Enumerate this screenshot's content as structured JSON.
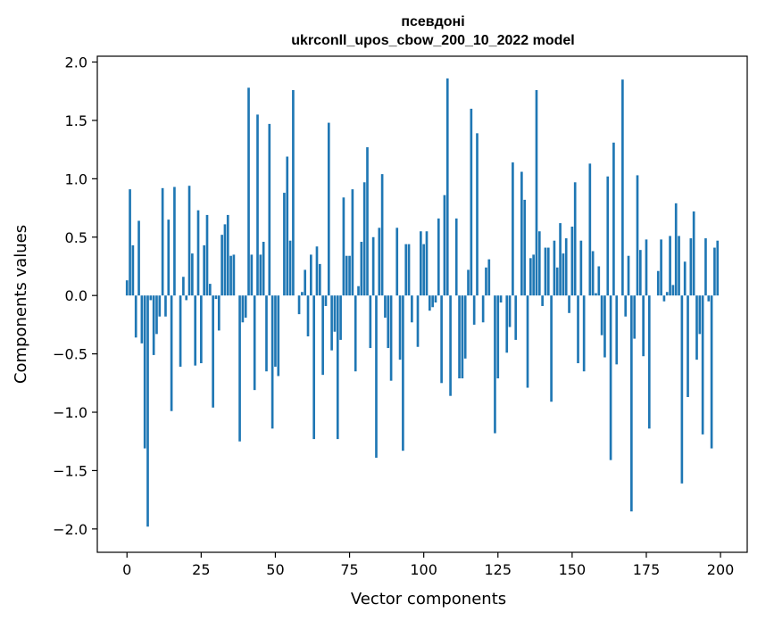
{
  "chart_data": {
    "type": "bar",
    "title_lines": [
      "псевдоні",
      "ukrconll_upos_cbow_200_10_2022 model"
    ],
    "xlabel": "Vector components",
    "ylabel": "Components values",
    "xlim": [
      -10,
      209
    ],
    "ylim": [
      -2.2,
      2.05
    ],
    "xticks": [
      0,
      25,
      50,
      75,
      100,
      125,
      150,
      175,
      200
    ],
    "yticks": [
      -2.0,
      -1.5,
      -1.0,
      -0.5,
      0.0,
      0.5,
      1.0,
      1.5,
      2.0
    ],
    "ytick_labels": [
      "−2.0",
      "−1.5",
      "−1.0",
      "−0.5",
      "0.0",
      "0.5",
      "1.0",
      "1.5",
      "2.0"
    ],
    "bar_color": "#1f77b4",
    "grid": false,
    "values": [
      0.13,
      0.91,
      0.43,
      -0.36,
      0.64,
      -0.41,
      -1.31,
      -1.98,
      -0.04,
      -0.51,
      -0.33,
      -0.18,
      0.92,
      -0.18,
      0.65,
      -0.99,
      0.93,
      0.0,
      -0.61,
      0.16,
      -0.04,
      0.94,
      0.36,
      -0.6,
      0.73,
      -0.58,
      0.43,
      0.69,
      0.1,
      -0.96,
      -0.03,
      -0.3,
      0.52,
      0.61,
      0.69,
      0.34,
      0.35,
      0.0,
      -1.25,
      -0.23,
      -0.19,
      1.78,
      0.35,
      -0.81,
      1.55,
      0.35,
      0.46,
      -0.65,
      1.47,
      -1.14,
      -0.61,
      -0.69,
      0.0,
      0.88,
      1.19,
      0.47,
      1.76,
      0.0,
      -0.16,
      0.03,
      0.22,
      -0.35,
      0.35,
      -1.23,
      0.42,
      0.27,
      -0.68,
      -0.09,
      1.48,
      -0.47,
      -0.31,
      -1.23,
      -0.38,
      0.84,
      0.34,
      0.34,
      0.91,
      -0.65,
      0.08,
      0.46,
      0.97,
      1.27,
      -0.45,
      0.5,
      -1.39,
      0.58,
      1.04,
      -0.19,
      -0.45,
      -0.73,
      0.0,
      0.58,
      -0.55,
      -1.33,
      0.44,
      0.44,
      -0.23,
      0.0,
      -0.44,
      0.55,
      0.44,
      0.55,
      -0.13,
      -0.1,
      -0.06,
      0.66,
      -0.75,
      0.86,
      1.86,
      -0.86,
      0.0,
      0.66,
      -0.71,
      -0.71,
      -0.54,
      0.22,
      1.6,
      -0.25,
      1.39,
      0.0,
      -0.23,
      0.24,
      0.31,
      0.0,
      -1.18,
      -0.71,
      -0.06,
      0.0,
      -0.49,
      -0.27,
      1.14,
      -0.38,
      0.0,
      1.06,
      0.82,
      -0.79,
      0.32,
      0.35,
      1.76,
      0.55,
      -0.09,
      0.41,
      0.41,
      -0.91,
      0.47,
      0.24,
      0.62,
      0.36,
      0.49,
      -0.15,
      0.59,
      0.97,
      -0.58,
      0.47,
      -0.65,
      0.0,
      1.13,
      0.38,
      0.02,
      0.25,
      -0.34,
      -0.53,
      1.02,
      -1.41,
      1.31,
      -0.59,
      0.0,
      1.85,
      -0.18,
      0.34,
      -1.85,
      -0.37,
      1.03,
      0.39,
      -0.52,
      0.48,
      -1.14,
      0.0,
      0.0,
      0.21,
      0.48,
      -0.05,
      0.03,
      0.51,
      0.09,
      0.79,
      0.51,
      -1.61,
      0.29,
      -0.87,
      0.49,
      0.72,
      -0.55,
      -0.33,
      -1.19,
      0.49,
      -0.05,
      -1.31,
      0.41,
      0.47
    ]
  }
}
